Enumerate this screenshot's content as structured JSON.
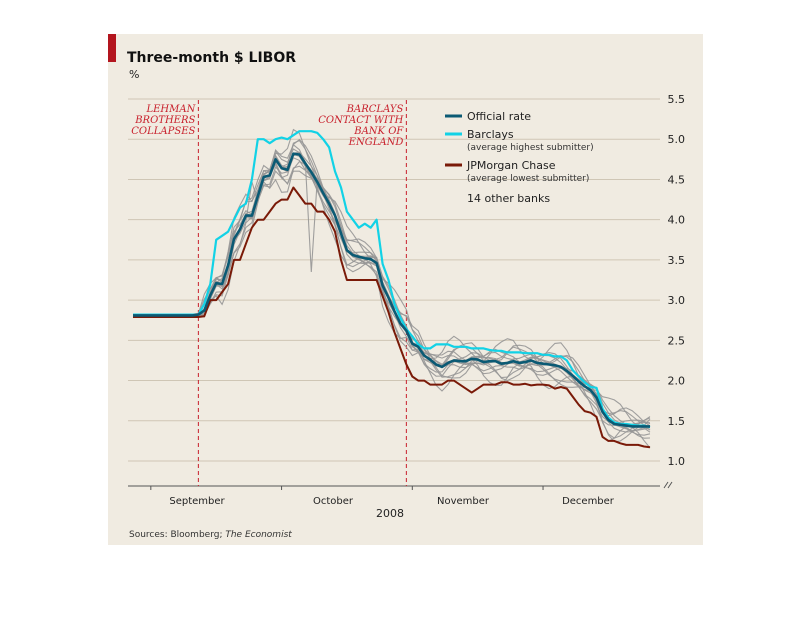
{
  "chart_data": {
    "type": "line",
    "title": "Three-month $ LIBOR",
    "unit": "%",
    "year_label": "2008",
    "x_tick_labels": [
      "September",
      "October",
      "November",
      "December"
    ],
    "y_ticks": [
      1.0,
      1.5,
      2.0,
      2.5,
      3.0,
      3.5,
      4.0,
      4.5,
      5.0,
      5.5
    ],
    "y_tick_labels": [
      "1.0",
      "1.5",
      "2.0",
      "2.5",
      "3.0",
      "3.5",
      "4.0",
      "4.5",
      "5.0",
      "5.5"
    ],
    "ylim": [
      0.7,
      5.5
    ],
    "axis_break": true,
    "grid": true,
    "legend_position": "top-right",
    "annotations": [
      {
        "lines": [
          "LEHMAN",
          "BROTHERS",
          "COLLAPSES"
        ],
        "index": 11
      },
      {
        "lines": [
          "BARCLAYS",
          "CONTACT WITH",
          "BANK OF",
          "ENGLAND"
        ],
        "index": 46
      }
    ],
    "series": [
      {
        "name": "Official rate",
        "color": "#0b5a74",
        "width": 2.6,
        "values": [
          2.81,
          2.81,
          2.81,
          2.81,
          2.81,
          2.81,
          2.81,
          2.81,
          2.81,
          2.81,
          2.81,
          2.82,
          2.87,
          3.06,
          3.21,
          3.2,
          3.43,
          3.76,
          3.88,
          4.05,
          4.05,
          4.29,
          4.53,
          4.55,
          4.75,
          4.64,
          4.62,
          4.82,
          4.81,
          4.7,
          4.59,
          4.47,
          4.33,
          4.2,
          4.05,
          3.83,
          3.62,
          3.56,
          3.54,
          3.52,
          3.51,
          3.46,
          3.18,
          3.03,
          2.86,
          2.71,
          2.62,
          2.46,
          2.42,
          2.31,
          2.26,
          2.2,
          2.17,
          2.22,
          2.25,
          2.24,
          2.24,
          2.27,
          2.26,
          2.23,
          2.24,
          2.24,
          2.21,
          2.22,
          2.24,
          2.22,
          2.23,
          2.25,
          2.22,
          2.21,
          2.2,
          2.19,
          2.17,
          2.12,
          2.06,
          1.99,
          1.93,
          1.88,
          1.79,
          1.61,
          1.51,
          1.46,
          1.45,
          1.44,
          1.43,
          1.43,
          1.43,
          1.43
        ]
      },
      {
        "name": "Barclays",
        "sublabel": "(average highest submitter)",
        "color": "#12d2e6",
        "width": 2.2,
        "values": [
          2.82,
          2.82,
          2.82,
          2.82,
          2.82,
          2.82,
          2.82,
          2.82,
          2.82,
          2.82,
          2.82,
          2.82,
          2.95,
          3.2,
          3.75,
          3.8,
          3.85,
          4.0,
          4.15,
          4.2,
          4.5,
          5.0,
          5.0,
          4.95,
          5.0,
          5.02,
          5.0,
          5.05,
          5.1,
          5.1,
          5.1,
          5.08,
          5.0,
          4.9,
          4.6,
          4.4,
          4.1,
          4.0,
          3.9,
          3.95,
          3.9,
          4.0,
          3.45,
          3.25,
          2.95,
          2.78,
          2.64,
          2.55,
          2.45,
          2.4,
          2.4,
          2.45,
          2.45,
          2.45,
          2.42,
          2.42,
          2.42,
          2.4,
          2.4,
          2.4,
          2.38,
          2.37,
          2.37,
          2.35,
          2.35,
          2.35,
          2.34,
          2.34,
          2.34,
          2.32,
          2.32,
          2.3,
          2.3,
          2.25,
          2.13,
          2.05,
          1.98,
          1.92,
          1.91,
          1.65,
          1.54,
          1.48,
          1.46,
          1.46,
          1.45,
          1.44,
          1.44,
          1.42
        ]
      },
      {
        "name": "JPMorgan Chase",
        "sublabel": "(average lowest submitter)",
        "color": "#7a1a08",
        "width": 2.0,
        "values": [
          2.79,
          2.79,
          2.79,
          2.79,
          2.79,
          2.79,
          2.79,
          2.79,
          2.79,
          2.79,
          2.79,
          2.79,
          2.8,
          3.0,
          3.0,
          3.1,
          3.2,
          3.5,
          3.5,
          3.7,
          3.9,
          4.0,
          4.0,
          4.1,
          4.2,
          4.25,
          4.25,
          4.4,
          4.3,
          4.2,
          4.2,
          4.1,
          4.1,
          4.0,
          3.85,
          3.5,
          3.25,
          3.25,
          3.25,
          3.25,
          3.25,
          3.25,
          3.05,
          2.85,
          2.6,
          2.4,
          2.2,
          2.05,
          2.0,
          2.0,
          1.95,
          1.95,
          1.95,
          2.0,
          2.0,
          1.95,
          1.9,
          1.85,
          1.9,
          1.95,
          1.95,
          1.95,
          1.98,
          1.98,
          1.95,
          1.95,
          1.96,
          1.94,
          1.95,
          1.95,
          1.94,
          1.9,
          1.92,
          1.9,
          1.8,
          1.7,
          1.62,
          1.6,
          1.55,
          1.3,
          1.25,
          1.25,
          1.22,
          1.2,
          1.2,
          1.2,
          1.18,
          1.17
        ]
      }
    ],
    "other_banks": {
      "name": "14 other banks",
      "color": "#969696",
      "count": 14,
      "offsets": [
        0.22,
        -0.22,
        0.15,
        -0.15,
        0.08,
        -0.08,
        0.3,
        -0.3,
        0.05,
        -0.05,
        0.18,
        -0.18,
        0.11,
        -0.11
      ],
      "spike": {
        "index": 30,
        "value": 3.35
      }
    },
    "sources": [
      "Sources: Bloomberg; ",
      "The Economist"
    ]
  }
}
